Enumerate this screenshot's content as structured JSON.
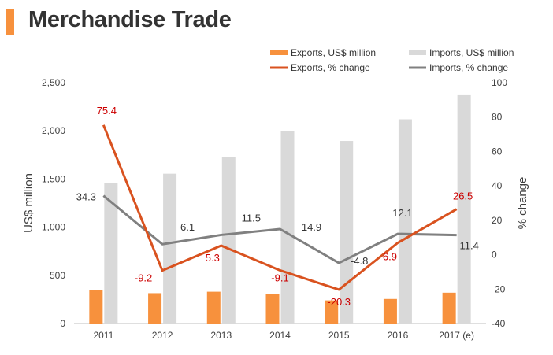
{
  "title": "Merchandise Trade",
  "colors": {
    "exports_bar": "#f7913d",
    "imports_bar": "#d9d9d9",
    "exports_line": "#d9521f",
    "imports_line": "#808080",
    "exports_label": "#cc0000",
    "imports_label": "#333333",
    "title_accent": "#f7913d"
  },
  "chart_data": {
    "type": "bar",
    "categories": [
      "2011",
      "2012",
      "2013",
      "2014",
      "2015",
      "2016",
      "2017 (e)"
    ],
    "ylabel": "US$ million",
    "y2label": "% change",
    "ylim": [
      0,
      2500
    ],
    "y2lim": [
      -40,
      100
    ],
    "yticks": [
      "0",
      "500",
      "1,000",
      "1,500",
      "2,000",
      "2,500"
    ],
    "y2ticks": [
      "-40",
      "-20",
      "0",
      "20",
      "40",
      "60",
      "80",
      "100"
    ],
    "legend_position": "top-right",
    "series": [
      {
        "name": "Exports, US$ million",
        "kind": "bar",
        "axis": "left",
        "values": [
          345,
          315,
          330,
          305,
          240,
          255,
          320
        ]
      },
      {
        "name": "Imports, US$ million",
        "kind": "bar",
        "axis": "left",
        "values": [
          1460,
          1555,
          1730,
          1995,
          1895,
          2120,
          2370
        ]
      },
      {
        "name": "Exports, % change",
        "kind": "line",
        "axis": "right",
        "values": [
          75.4,
          -9.2,
          5.3,
          -9.1,
          -20.3,
          6.9,
          26.5
        ],
        "labels": [
          "75.4",
          "-9.2",
          "5.3",
          "-9.1",
          "-20.3",
          "6.9",
          "26.5"
        ]
      },
      {
        "name": "Imports, % change",
        "kind": "line",
        "axis": "right",
        "values": [
          34.3,
          6.1,
          11.5,
          14.9,
          -4.8,
          12.1,
          11.4
        ],
        "labels": [
          "34.3",
          "6.1",
          "11.5",
          "14.9",
          "-4.8",
          "12.1",
          "11.4"
        ]
      }
    ]
  }
}
